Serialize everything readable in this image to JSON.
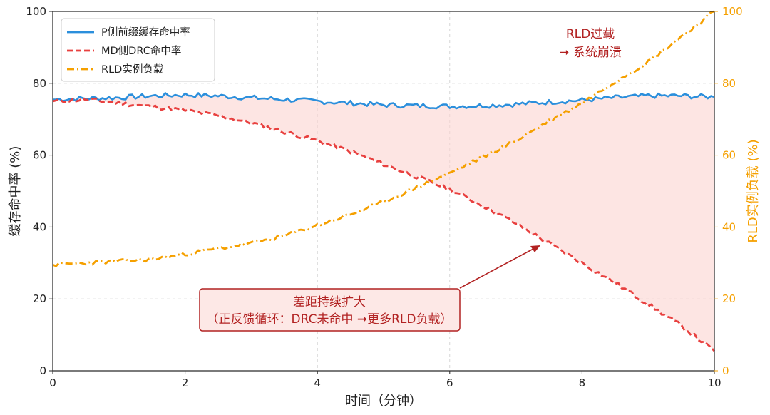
{
  "chart_data": {
    "type": "line",
    "xlabel": "时间（分钟）",
    "ylabel_left": "缓存命中率 (%)",
    "ylabel_right": "RLD实例负载 (%)",
    "xlim": [
      0,
      10
    ],
    "ylim_left": [
      0,
      100
    ],
    "ylim_right": [
      0,
      100
    ],
    "x_ticks": [
      "0",
      "2",
      "4",
      "6",
      "8",
      "10"
    ],
    "y_ticks_left": [
      "0",
      "20",
      "40",
      "60",
      "80",
      "100"
    ],
    "y_ticks_right": [
      "0",
      "20",
      "40",
      "60",
      "80",
      "100"
    ],
    "grid": true,
    "legend_position": "top-left",
    "series": [
      {
        "name": "P侧前缀缓存命中率",
        "axis": "left",
        "style": "solid",
        "color": "#2b8fdc",
        "x": [
          0,
          0.5,
          1.0,
          1.5,
          2.0,
          2.5,
          3.0,
          3.5,
          4.0,
          4.5,
          5.0,
          5.5,
          6.0,
          6.5,
          7.0,
          7.5,
          8.0,
          8.5,
          9.0,
          9.5,
          10.0
        ],
        "y": [
          75.5,
          75.8,
          76.0,
          76.5,
          76.8,
          76.5,
          76.0,
          75.5,
          75.0,
          74.5,
          74.0,
          73.8,
          73.6,
          73.8,
          74.2,
          74.8,
          75.3,
          76.0,
          76.5,
          76.5,
          76.2
        ]
      },
      {
        "name": "MD侧DRC命中率",
        "axis": "left",
        "style": "dashed",
        "color": "#e8403f",
        "x": [
          0,
          0.5,
          1.0,
          1.5,
          2.0,
          2.5,
          3.0,
          3.5,
          4.0,
          4.5,
          5.0,
          5.5,
          6.0,
          6.5,
          7.0,
          7.5,
          8.0,
          8.5,
          9.0,
          9.5,
          10.0
        ],
        "y": [
          75.0,
          75.5,
          74.5,
          73.5,
          72.5,
          71.0,
          69.0,
          66.5,
          64.0,
          61.0,
          57.5,
          54.0,
          50.5,
          46.0,
          41.0,
          35.5,
          30.0,
          24.5,
          18.5,
          12.5,
          5.5
        ]
      },
      {
        "name": "RLD实例负载",
        "axis": "right",
        "style": "dash-dot",
        "color": "#f5a000",
        "x": [
          0,
          0.5,
          1.0,
          1.5,
          2.0,
          2.5,
          3.0,
          3.5,
          4.0,
          4.5,
          5.0,
          5.5,
          6.0,
          6.5,
          7.0,
          7.5,
          8.0,
          8.5,
          9.0,
          9.5,
          10.0
        ],
        "y": [
          29.5,
          30.0,
          30.5,
          31.0,
          32.5,
          34.0,
          35.5,
          37.5,
          40.5,
          43.5,
          47.0,
          51.0,
          55.0,
          59.5,
          64.0,
          69.5,
          74.5,
          80.5,
          86.0,
          93.0,
          100.0
        ]
      }
    ],
    "shaded_region": {
      "between": [
        "P侧前缀缓存命中率",
        "MD侧DRC命中率"
      ],
      "color": "#fbd3d0"
    },
    "annotations": [
      {
        "text": "差距持续扩大",
        "line": 1,
        "boxed": true
      },
      {
        "text": "（正反馈循环：DRC未命中 ➞更多RLD负载）",
        "line": 2,
        "boxed": true
      },
      {
        "text": "RLD过载",
        "line": 1,
        "boxed": false
      },
      {
        "text": "➞ 系统崩溃",
        "line": 2,
        "boxed": false
      }
    ],
    "annotation_color": "#b22222"
  }
}
